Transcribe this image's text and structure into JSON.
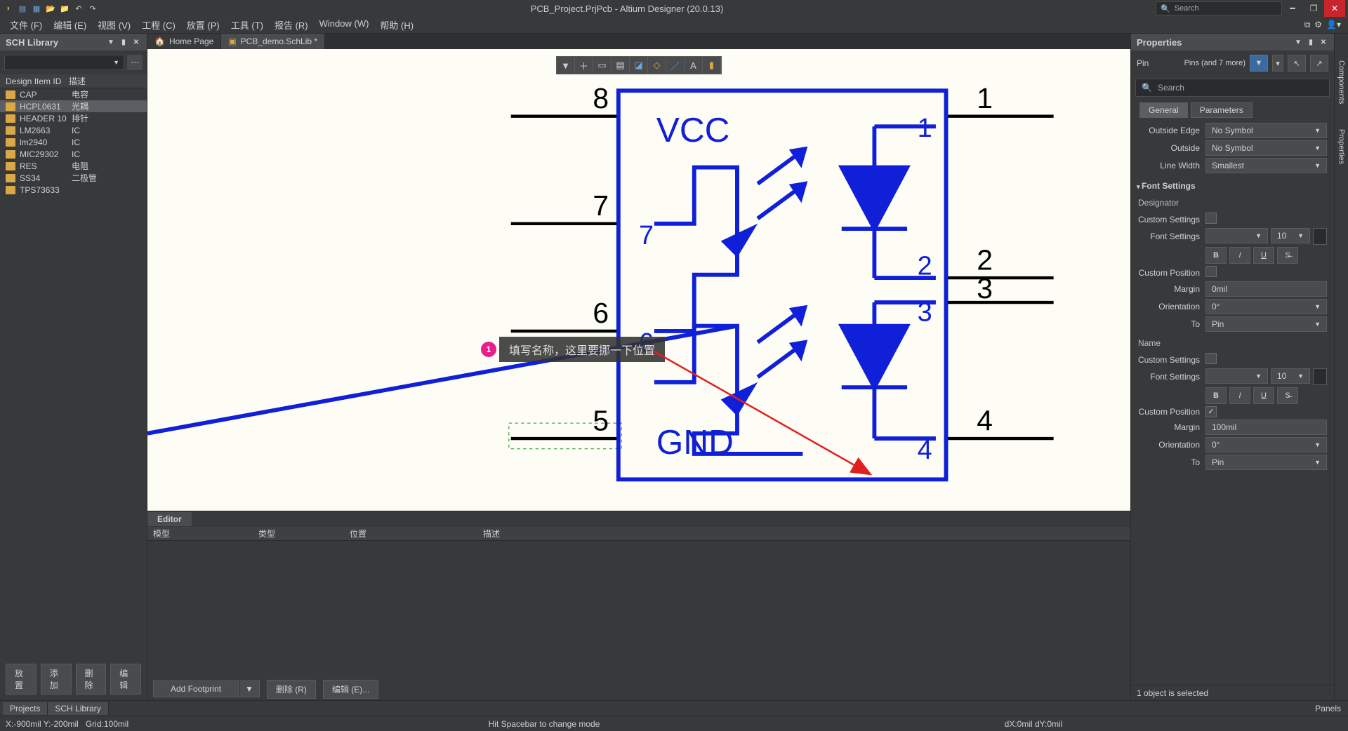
{
  "title": "PCB_Project.PrjPcb - Altium Designer (20.0.13)",
  "search_placeholder": "Search",
  "menu": [
    "文件 (F)",
    "编辑 (E)",
    "视图 (V)",
    "工程 (C)",
    "放置 (P)",
    "工具 (T)",
    "报告 (R)",
    "Window (W)",
    "帮助 (H)"
  ],
  "left": {
    "title": "SCH Library",
    "cols": [
      "Design Item ID",
      "描述"
    ],
    "items": [
      {
        "id": "CAP",
        "desc": "电容"
      },
      {
        "id": "HCPL0631",
        "desc": "光耦"
      },
      {
        "id": "HEADER 10",
        "desc": "排针"
      },
      {
        "id": "LM2663",
        "desc": "IC"
      },
      {
        "id": "lm2940",
        "desc": "IC"
      },
      {
        "id": "MIC29302",
        "desc": "IC"
      },
      {
        "id": "RES",
        "desc": "电阻"
      },
      {
        "id": "SS34",
        "desc": "二极管"
      },
      {
        "id": "TPS73633",
        "desc": ""
      }
    ],
    "selected": 1,
    "btns": [
      "放置",
      "添加",
      "删除",
      "编辑"
    ]
  },
  "tabs": [
    {
      "label": "Home Page",
      "home": true
    },
    {
      "label": "PCB_demo.SchLib *",
      "active": true
    }
  ],
  "canvas_toolbar": [
    "▼",
    "＋",
    "▭",
    "▤",
    "◪",
    "◇",
    "／",
    "A",
    "▮"
  ],
  "annotation": {
    "num": "1",
    "text": "填写名称，这里要挪一下位置"
  },
  "schematic": {
    "vcc": "VCC",
    "gnd": "GND",
    "pins_left": [
      "8",
      "7",
      "6",
      "5"
    ],
    "pins_right": [
      "1",
      "2",
      "3",
      "4"
    ],
    "pins_in_left": [
      "8",
      "7",
      "6",
      "5"
    ],
    "pins_in_right": [
      "1",
      "2",
      "3",
      "4"
    ],
    "stroke": "#1020d8",
    "fill": "#1020d8",
    "line_color": "#000000"
  },
  "editor": {
    "tab": "Editor",
    "cols": [
      "模型",
      "类型",
      "位置",
      "描述"
    ],
    "add_fp": "Add Footprint",
    "del": "删除 (R)",
    "edit": "编辑 (E)..."
  },
  "right": {
    "title": "Properties",
    "pin_label": "Pin",
    "pin_info": "Pins (and 7 more)",
    "search_placeholder": "Search",
    "tabs": [
      "General",
      "Parameters"
    ],
    "active_tab": 0,
    "outside_edge": {
      "label": "Outside Edge",
      "value": "No Symbol"
    },
    "outside": {
      "label": "Outside",
      "value": "No Symbol"
    },
    "line_width": {
      "label": "Line Width",
      "value": "Smallest"
    },
    "font_section": "Font Settings",
    "designator": "Designator",
    "name_section": "Name",
    "custom_settings": "Custom Settings",
    "font_settings": "Font Settings",
    "font_size": "10",
    "custom_position": "Custom Position",
    "margin": "Margin",
    "margin_val_0": "0mil",
    "margin_val_1": "100mil",
    "orientation": "Orientation",
    "orientation_val": "0°",
    "to": "To",
    "to_val": "Pin",
    "status": "1 object is selected"
  },
  "sidebar_tabs": [
    "Components",
    "Properties"
  ],
  "bottom_tabs": [
    "Projects",
    "SCH Library"
  ],
  "status": {
    "coords": "X:-900mil Y:-200mil",
    "grid": "Grid:100mil",
    "hint": "Hit Spacebar to change mode",
    "delta": "dX:0mil dY:0mil",
    "panels": "Panels"
  }
}
